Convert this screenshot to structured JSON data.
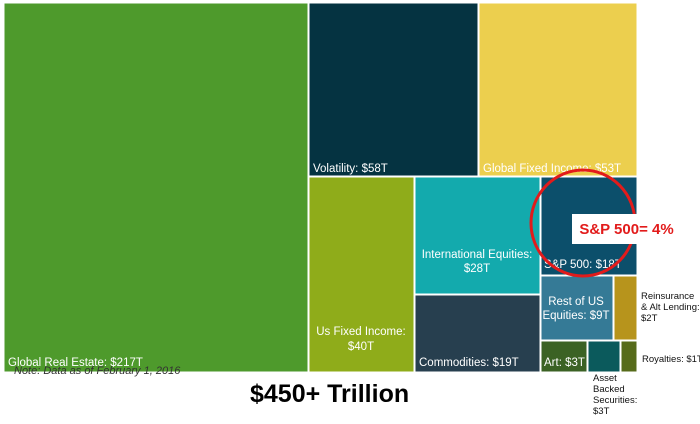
{
  "chart_data": {
    "type": "treemap",
    "unit": "$T",
    "total_label": "$450+ Trillion",
    "note": "Note: Data as of February 1, 2016",
    "callout": "S&P 500= 4%",
    "items": [
      {
        "name": "Global Real Estate",
        "value": 217,
        "label": [
          "Global Real Estate: $217T"
        ],
        "color": "#4e9a2c"
      },
      {
        "name": "Volatility",
        "value": 58,
        "label": [
          "Volatility: $58T"
        ],
        "color": "#053341"
      },
      {
        "name": "Global Fixed Income",
        "value": 53,
        "label": [
          "Global Fixed Income: $53T"
        ],
        "color": "#eccf4e"
      },
      {
        "name": "Us Fixed Income",
        "value": 40,
        "label": [
          "Us Fixed Income:",
          "$40T"
        ],
        "color": "#8fac1a"
      },
      {
        "name": "International Equities",
        "value": 28,
        "label": [
          "International Equities:",
          "$28T"
        ],
        "color": "#13aaad"
      },
      {
        "name": "Commodities",
        "value": 19,
        "label": [
          "Commodities: $19T"
        ],
        "color": "#273f4f"
      },
      {
        "name": "S&P 500",
        "value": 18,
        "label": [
          "S&P 500: $18T"
        ],
        "color": "#0c4f6b"
      },
      {
        "name": "Rest of US Equities",
        "value": 9,
        "label": [
          "Rest of US",
          "Equities: $9T"
        ],
        "color": "#357a96"
      },
      {
        "name": "Art",
        "value": 3,
        "label": [
          "Art: $3T"
        ],
        "color": "#3b6224"
      },
      {
        "name": "Asset Backed Securities",
        "value": 3,
        "label": [
          "Asset",
          "Backed",
          "Securities:",
          "$3T"
        ],
        "color": "#0b5a5c",
        "label_outside": true
      },
      {
        "name": "Reinsurance & Alt Lending",
        "value": 2,
        "label": [
          "Reinsurance",
          "& Alt Lending:",
          "$2T"
        ],
        "color": "#b7941c",
        "label_outside": true
      },
      {
        "name": "Royalties",
        "value": 1,
        "label": [
          "Royalties: $1T"
        ],
        "color": "#566b1a",
        "label_outside": true
      }
    ]
  }
}
